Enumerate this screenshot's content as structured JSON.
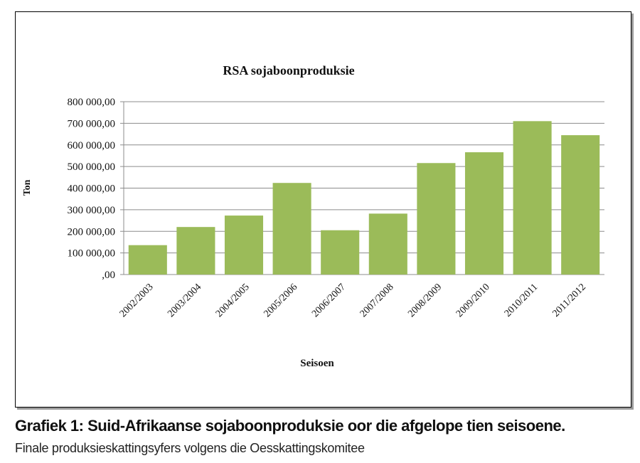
{
  "chart_data": {
    "type": "bar",
    "title": "RSA sojaboonproduksie",
    "xlabel": "Seisoen",
    "ylabel": "Ton",
    "categories": [
      "2002/2003",
      "2003/2004",
      "2004/2005",
      "2005/2006",
      "2006/2007",
      "2007/2008",
      "2008/2009",
      "2009/2010",
      "2010/2011",
      "2011/2012"
    ],
    "values": [
      136000,
      220000,
      273000,
      424000,
      205000,
      282000,
      516000,
      566000,
      710000,
      645000
    ],
    "ylim": [
      0,
      800000
    ],
    "yticks": [
      ",00",
      "100 000,00",
      "200 000,00",
      "300 000,00",
      "400 000,00",
      "500 000,00",
      "600 000,00",
      "700 000,00",
      "800 000,00"
    ],
    "grid": true,
    "legend": "none",
    "bar_color": "#9bbb59"
  },
  "caption": {
    "title": "Grafiek 1: Suid-Afrikaanse sojaboonproduksie oor die afgelope tien seisoene.",
    "subtitle": "Finale produksieskattingsyfers volgens die Oesskattingskomitee"
  }
}
